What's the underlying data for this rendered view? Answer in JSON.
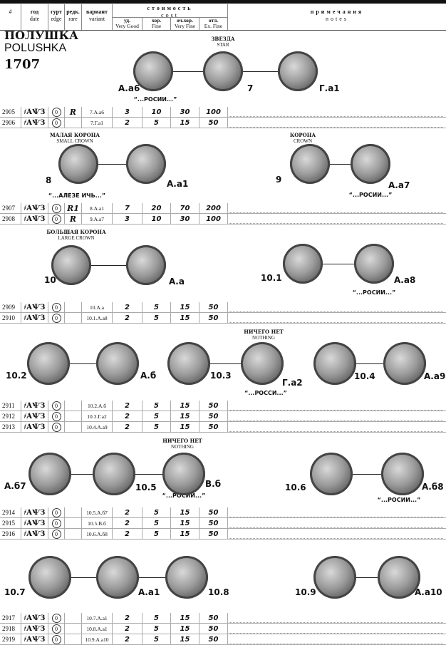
{
  "header": {
    "title_ru": "ПОЛУШКА",
    "title_en": "POLUSHKA",
    "year": "1707"
  },
  "columns": {
    "number": "#",
    "date_ru": "год",
    "date_en": "date",
    "edge_ru": "гурт",
    "edge_en": "edge",
    "rarity_ru": "редк.",
    "rarity_en": "rare",
    "variant_ru": "вариант",
    "variant_en": "variant",
    "cost_ru": "стоимость",
    "cost_en": "cost",
    "grades": [
      {
        "ru": "уд.",
        "en": "Very Good"
      },
      {
        "ru": "хор.",
        "en": "Fine"
      },
      {
        "ru": "оч.хор.",
        "en": "Very Fine"
      },
      {
        "ru": "отл.",
        "en": "Ex. Fine"
      }
    ],
    "notes_ru": "примечания",
    "notes_en": "notes"
  },
  "blocks": [
    {
      "labels": [
        "ЗВЕЗДА",
        "STAR",
        "А.а6",
        "7",
        "Г.а1",
        "“...РОСИИ...”"
      ],
      "rows": [
        {
          "number": "2905",
          "date": "҂АѰЗ",
          "edge": "0",
          "rarity": "R",
          "variant": "7.А.а6",
          "prices": [
            3,
            10,
            30,
            100
          ]
        },
        {
          "number": "2906",
          "date": "҂АѰЗ",
          "edge": "0",
          "variant": "7.Г.а1",
          "prices": [
            2,
            5,
            15,
            50
          ]
        }
      ]
    },
    {
      "labels": [
        "МАЛАЯ КОРОНА",
        "SMALL CROWN",
        "8",
        "А.а1",
        "“...АЛЕЗЕ ИЧЬ...”",
        "КОРОНА",
        "CROWN",
        "9",
        "А.а7",
        "“...РОСИИ...”"
      ],
      "rows": [
        {
          "number": "2907",
          "date": "҂АѰЗ",
          "edge": "0",
          "rarity": "R1",
          "variant": "8.А.а1",
          "prices": [
            7,
            20,
            70,
            200
          ]
        },
        {
          "number": "2908",
          "date": "҂АѰЗ",
          "edge": "0",
          "rarity": "R",
          "variant": "9.А.а7",
          "prices": [
            3,
            10,
            30,
            100
          ]
        }
      ]
    },
    {
      "labels": [
        "БОЛЬШАЯ КОРОНА",
        "LARGE CROWN",
        "10",
        "А.а",
        "10.1",
        "А.а8",
        "“...РОСИИ...”"
      ],
      "rows": [
        {
          "number": "2909",
          "date": "҂АѰЗ",
          "edge": "0",
          "variant": "10.А.а",
          "prices": [
            2,
            5,
            15,
            50
          ]
        },
        {
          "number": "2910",
          "date": "҂АѰЗ",
          "edge": "0",
          "variant": "10.1.А.а8",
          "prices": [
            2,
            5,
            15,
            50
          ]
        }
      ]
    },
    {
      "labels": [
        "НИЧЕГО НЕТ",
        "NOTHING",
        "10.2",
        "А.б",
        "10.3",
        "Г.а2",
        "“...РОССИ...”",
        "10.4",
        "А.а9"
      ],
      "rows": [
        {
          "number": "2911",
          "date": "҂АѰЗ",
          "edge": "0",
          "variant": "10.2.А.б",
          "prices": [
            2,
            5,
            15,
            50
          ]
        },
        {
          "number": "2912",
          "date": "҂АѰЗ",
          "edge": "0",
          "variant": "10.3.Г.а2",
          "prices": [
            2,
            5,
            15,
            50
          ]
        },
        {
          "number": "2913",
          "date": "҂АѰЗ",
          "edge": "0",
          "variant": "10.4.А.а9",
          "prices": [
            2,
            5,
            15,
            50
          ]
        }
      ]
    },
    {
      "labels": [
        "НИЧЕГО НЕТ",
        "NOTHING",
        "А.б7",
        "10.5",
        "В.б",
        "“...РОСИИ...”",
        "10.6",
        "А.б8",
        "“...РОСИИ...”"
      ],
      "rows": [
        {
          "number": "2914",
          "date": "҂АѰЗ",
          "edge": "0",
          "variant": "10.5.А.б7",
          "prices": [
            2,
            5,
            15,
            50
          ]
        },
        {
          "number": "2915",
          "date": "҂АѰЗ",
          "edge": "0",
          "variant": "10.5.В.б",
          "prices": [
            2,
            5,
            15,
            50
          ]
        },
        {
          "number": "2916",
          "date": "҂АѰЗ",
          "edge": "0",
          "variant": "10.6.А.б8",
          "prices": [
            2,
            5,
            15,
            50
          ]
        }
      ]
    },
    {
      "labels": [
        "10.7",
        "А.а1",
        "10.8",
        "10.9",
        "А.а10"
      ],
      "rows": [
        {
          "number": "2917",
          "date": "҂АѰЗ",
          "edge": "0",
          "variant": "10.7.А.а1",
          "prices": [
            2,
            5,
            15,
            50
          ]
        },
        {
          "number": "2918",
          "date": "҂АѰЗ",
          "edge": "0",
          "variant": "10.8.А.а1",
          "prices": [
            2,
            5,
            15,
            50
          ]
        },
        {
          "number": "2919",
          "date": "҂АѰЗ",
          "edge": "0",
          "variant": "10.9.А.а10",
          "prices": [
            2,
            5,
            15,
            50
          ]
        }
      ]
    }
  ]
}
